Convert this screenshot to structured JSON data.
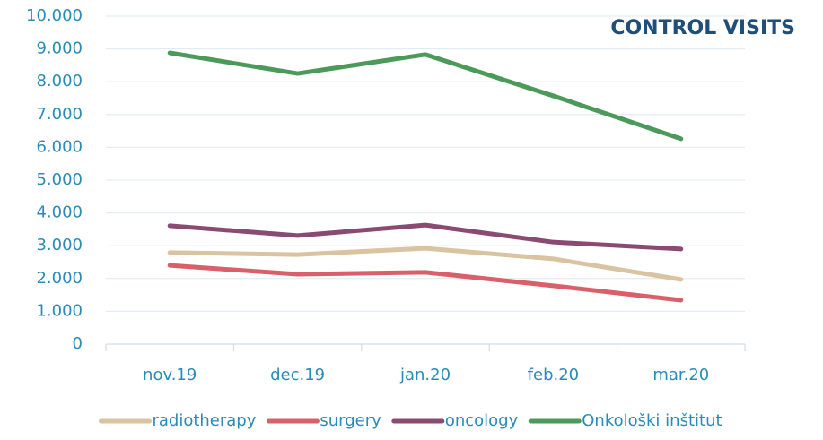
{
  "chart_data": {
    "type": "line",
    "title": "CONTROL VISITS",
    "categories": [
      "nov.19",
      "dec.19",
      "jan.20",
      "feb.20",
      "mar.20"
    ],
    "series": [
      {
        "name": "radiotherapy",
        "color": "#d9c3a0",
        "values": [
          2790,
          2730,
          2920,
          2600,
          1970
        ]
      },
      {
        "name": "surgery",
        "color": "#d9606a",
        "values": [
          2400,
          2130,
          2190,
          1780,
          1340
        ]
      },
      {
        "name": "oncology",
        "color": "#8b4a72",
        "values": [
          3610,
          3310,
          3630,
          3110,
          2900
        ]
      },
      {
        "name": "Onkološki inštitut",
        "color": "#4c9a5a",
        "values": [
          8880,
          8250,
          8830,
          7570,
          6260
        ]
      }
    ],
    "ylim": [
      0,
      10000
    ],
    "yticks": [
      0,
      {
        "value": 1000,
        "label": "1.000"
      },
      {
        "value": 2000,
        "label": "2.000"
      },
      {
        "value": 3000,
        "label": "3.000"
      },
      {
        "value": 4000,
        "label": "4.000"
      },
      {
        "value": 5000,
        "label": "5.000"
      },
      {
        "value": 6000,
        "label": "6.000"
      },
      {
        "value": 7000,
        "label": "7.000"
      },
      {
        "value": 8000,
        "label": "8.000"
      },
      {
        "value": 9000,
        "label": "9.000"
      },
      {
        "value": 10000,
        "label": "10.000"
      }
    ],
    "grid": true,
    "legend": "bottom"
  }
}
